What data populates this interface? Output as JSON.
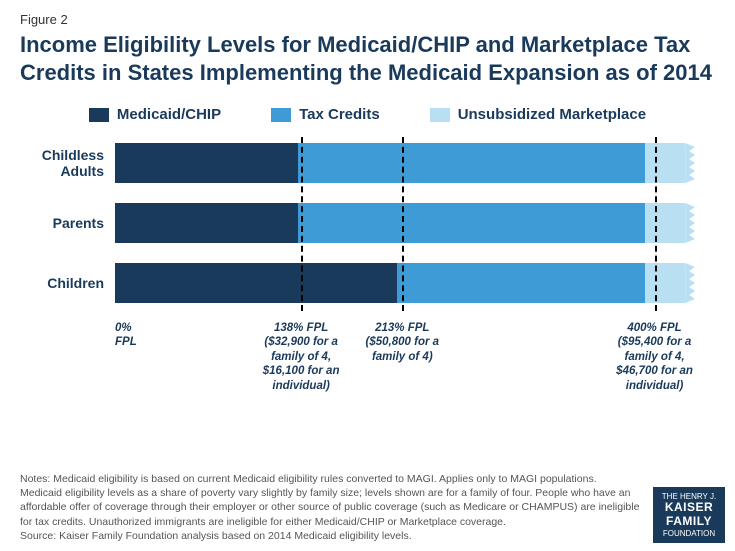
{
  "figure_label": "Figure 2",
  "title": "Income Eligibility Levels for Medicaid/CHIP and Marketplace Tax Credits in States Implementing the Medicaid Expansion as of 2014",
  "legend": [
    {
      "label": "Medicaid/CHIP",
      "color": "#1a3a5c"
    },
    {
      "label": "Tax Credits",
      "color": "#3e9bd6"
    },
    {
      "label": "Unsubsidized Marketplace",
      "color": "#b8dff2"
    }
  ],
  "chart": {
    "type": "stacked-bar-horizontal",
    "max_fpl": 430,
    "categories": [
      {
        "label": "Childless Adults",
        "segments": [
          {
            "start": 0,
            "end": 138,
            "color": "#1a3a5c"
          },
          {
            "start": 138,
            "end": 400,
            "color": "#3e9bd6"
          },
          {
            "start": 400,
            "end": 430,
            "color": "#b8dff2"
          }
        ]
      },
      {
        "label": "Parents",
        "segments": [
          {
            "start": 0,
            "end": 138,
            "color": "#1a3a5c"
          },
          {
            "start": 138,
            "end": 400,
            "color": "#3e9bd6"
          },
          {
            "start": 400,
            "end": 430,
            "color": "#b8dff2"
          }
        ]
      },
      {
        "label": "Children",
        "segments": [
          {
            "start": 0,
            "end": 213,
            "color": "#1a3a5c"
          },
          {
            "start": 213,
            "end": 400,
            "color": "#3e9bd6"
          },
          {
            "start": 400,
            "end": 430,
            "color": "#b8dff2"
          }
        ]
      }
    ],
    "gridlines_fpl": [
      138,
      213,
      400
    ],
    "ticks": [
      {
        "fpl": 0,
        "lines": [
          "0%",
          "FPL"
        ]
      },
      {
        "fpl": 138,
        "lines": [
          "138% FPL",
          "($32,900 for a",
          "family of 4,",
          "$16,100 for an",
          "individual)"
        ]
      },
      {
        "fpl": 213,
        "lines": [
          "213% FPL",
          "($50,800 for a",
          "family of 4)"
        ]
      },
      {
        "fpl": 400,
        "lines": [
          "400% FPL",
          "($95,400 for a",
          "family of 4,",
          "$46,700 for an",
          "individual)"
        ]
      }
    ]
  },
  "notes": "Notes: Medicaid eligibility is based on current Medicaid eligibility rules converted to MAGI. Applies only to MAGI populations. Medicaid eligibility levels as a share of poverty vary slightly by family size; levels shown are for a family of four. People who have an affordable offer of coverage through their employer or other source of public coverage (such as Medicare or CHAMPUS) are ineligible for tax credits. Unauthorized immigrants are ineligible for either Medicaid/CHIP or Marketplace coverage.",
  "source": "Source: Kaiser Family Foundation analysis based on 2014 Medicaid eligibility levels.",
  "logo": {
    "top": "THE HENRY J.",
    "name1": "KAISER",
    "name2": "FAMILY",
    "bottom": "FOUNDATION"
  }
}
